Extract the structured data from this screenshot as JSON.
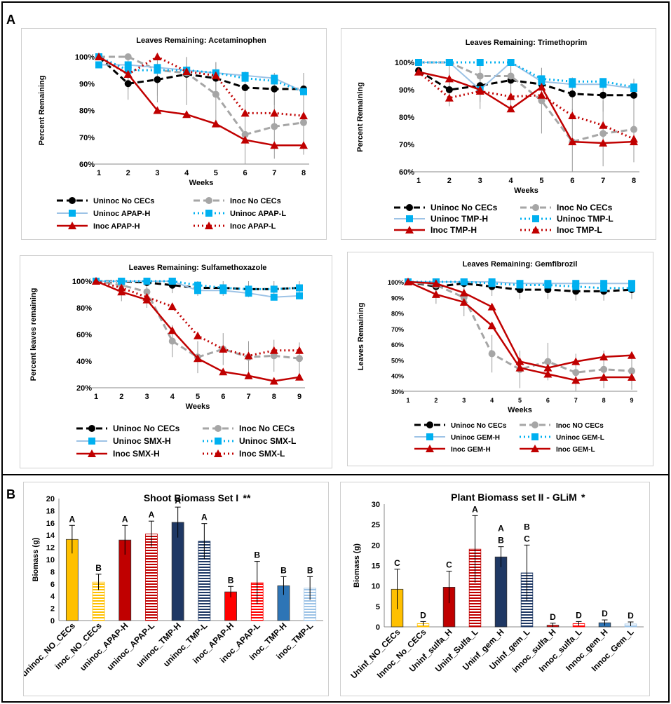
{
  "panels": {
    "a_label": "A",
    "b_label": "B"
  },
  "colors": {
    "black": "#000000",
    "gray": "#a6a6a6",
    "lightblue": "#9dc3e6",
    "blue": "#00b0f0",
    "cyan": "#00b0f0",
    "red": "#c00000",
    "yellow": "#ffc000",
    "darkred": "#c00000",
    "navy": "#1f3864",
    "brightred": "#ff0000",
    "steel": "#2e75b6",
    "sky": "#9dc3e6"
  },
  "chart_data": [
    {
      "type": "line",
      "title": "Leaves Remaining: Acetaminophen",
      "xlabel": "Weeks",
      "ylabel": "Percent Remaining",
      "x": [
        1,
        2,
        3,
        4,
        5,
        6,
        7,
        8
      ],
      "ylim": [
        60,
        100
      ],
      "yticks": [
        "60%",
        "70%",
        "80%",
        "90%",
        "100%"
      ],
      "series": [
        {
          "name": "Uninoc No CECs",
          "values": [
            100,
            90,
            91.5,
            93.5,
            92,
            88.5,
            88,
            88
          ],
          "style": "black"
        },
        {
          "name": "Inoc No CECs",
          "values": [
            100,
            100,
            95,
            94,
            86,
            71,
            74,
            75.5
          ],
          "style": "gray"
        },
        {
          "name": "Uninoc APAP-H",
          "values": [
            97,
            97,
            96,
            95,
            94,
            93,
            92,
            87
          ],
          "style": "lightblue"
        },
        {
          "name": "Uninoc APAP-L",
          "values": [
            100,
            95,
            95,
            95,
            94,
            92,
            91,
            87
          ],
          "style": "cyan"
        },
        {
          "name": "Inoc APAP-H",
          "values": [
            100,
            93.5,
            80,
            78.5,
            75,
            69,
            67,
            67
          ],
          "style": "red"
        },
        {
          "name": "Inoc APAP-L",
          "values": [
            100,
            93.5,
            100,
            94.5,
            93,
            79,
            79,
            78
          ],
          "style": "reddot"
        }
      ]
    },
    {
      "type": "line",
      "title": "Leaves Remaining: Trimethoprim",
      "xlabel": "Weeks",
      "ylabel": "Percent Remaining",
      "x": [
        1,
        2,
        3,
        4,
        5,
        6,
        7,
        8
      ],
      "ylim": [
        60,
        100
      ],
      "yticks": [
        "60%",
        "70%",
        "80%",
        "90%",
        "100%"
      ],
      "series": [
        {
          "name": "Uninoc No CECs",
          "values": [
            97,
            90,
            91.5,
            93.5,
            92,
            88.5,
            88,
            88
          ],
          "style": "black"
        },
        {
          "name": "Inoc No CECs",
          "values": [
            100,
            100,
            95,
            95,
            86,
            71,
            74,
            75.5
          ],
          "style": "gray"
        },
        {
          "name": "Uninoc TMP-H",
          "values": [
            100,
            100,
            90,
            100,
            93,
            92,
            92,
            90.5
          ],
          "style": "lightblue"
        },
        {
          "name": "Uninoc TMP-L",
          "values": [
            100,
            100,
            100,
            100,
            94,
            93,
            93,
            91
          ],
          "style": "cyan"
        },
        {
          "name": "Inoc TMP-H",
          "values": [
            96.5,
            94,
            90,
            83,
            91,
            71,
            70.5,
            71
          ],
          "style": "red"
        },
        {
          "name": "Inoc TMP-L",
          "values": [
            96.5,
            87,
            89.5,
            87.5,
            88,
            80.5,
            77,
            72
          ],
          "style": "reddot"
        }
      ]
    },
    {
      "type": "line",
      "title": "Leaves Remaining: Sulfamethoxazole",
      "xlabel": "Weeks",
      "ylabel": "Percent leaves remaining",
      "x": [
        1,
        2,
        3,
        4,
        5,
        6,
        7,
        8,
        9
      ],
      "ylim": [
        20,
        100
      ],
      "yticks": [
        "20%",
        "40%",
        "60%",
        "80%",
        "100%"
      ],
      "series": [
        {
          "name": "Uninoc No CECs",
          "values": [
            100,
            100,
            99,
            97,
            95,
            95,
            94,
            94,
            95
          ],
          "style": "black"
        },
        {
          "name": "Inoc No CECs",
          "values": [
            100,
            97,
            92,
            55,
            43,
            49,
            43,
            44,
            42
          ],
          "style": "gray"
        },
        {
          "name": "Uninoc SMX-H",
          "values": [
            100,
            100,
            100,
            100,
            93,
            93,
            91,
            88,
            89
          ],
          "style": "lightblue"
        },
        {
          "name": "Uninoc SMX-L",
          "values": [
            100,
            100,
            100,
            100,
            97,
            95,
            94,
            94,
            95
          ],
          "style": "cyan"
        },
        {
          "name": "Inoc SMX-H",
          "values": [
            100,
            92,
            86,
            63,
            42,
            32,
            29,
            25,
            28
          ],
          "style": "red"
        },
        {
          "name": "Inoc SMX-L",
          "values": [
            100,
            95,
            88,
            81,
            59,
            49,
            44,
            48,
            48
          ],
          "style": "reddot"
        }
      ]
    },
    {
      "type": "line",
      "title": "Leaves Remaining: Gemfibrozil",
      "xlabel": "Weeks",
      "ylabel": "Leaves Remaining",
      "x": [
        1,
        2,
        3,
        4,
        5,
        6,
        7,
        8,
        9
      ],
      "ylim": [
        30,
        100
      ],
      "yticks": [
        "30%",
        "40%",
        "50%",
        "60%",
        "70%",
        "80%",
        "90%",
        "100%"
      ],
      "series": [
        {
          "name": "Uninoc  No CECs",
          "values": [
            100,
            97,
            99,
            97,
            95,
            95,
            94,
            94,
            95
          ],
          "style": "black"
        },
        {
          "name": "Inoc NO CECs",
          "values": [
            100,
            98,
            90,
            54,
            44,
            49,
            42,
            44,
            43
          ],
          "style": "gray"
        },
        {
          "name": "Uninoc GEM-H",
          "values": [
            100,
            100,
            100,
            100,
            99,
            99,
            99,
            99,
            99
          ],
          "style": "lightblue"
        },
        {
          "name": "Uninoc GEM-L",
          "values": [
            100,
            100,
            100,
            99,
            98,
            98,
            97,
            96,
            96
          ],
          "style": "cyan"
        },
        {
          "name": "Inoc GEM-H",
          "values": [
            100,
            92,
            87,
            72,
            45,
            41,
            37,
            39,
            39
          ],
          "style": "red"
        },
        {
          "name": "Inoc GEM-L",
          "values": [
            100,
            99,
            93,
            84,
            49,
            45,
            49,
            52,
            53
          ],
          "style": "red"
        }
      ]
    },
    {
      "type": "bar",
      "title": "Shoot Biomass Set I",
      "title_suffix": "**",
      "ylabel": "Biomass (g)",
      "ylim": [
        0,
        20
      ],
      "ytick_step": 2,
      "categories": [
        "uninoc_NO_CECs",
        "inoc_NO_CECs",
        "uninoc_APAP-H",
        "uninoc_APAP-L",
        "uninoc_TMP-H",
        "uninoc_TMP-L",
        "inoc_APAP-H",
        "inoc_APAP-L",
        "inoc_TMP-H",
        "inoc_TMP-L"
      ],
      "values": [
        13.3,
        6.3,
        13.2,
        14.2,
        16.1,
        13.0,
        4.7,
        6.2,
        5.7,
        5.3
      ],
      "errors": [
        2.3,
        1.3,
        2.4,
        2.1,
        2.5,
        2.9,
        0.9,
        3.5,
        1.5,
        1.9
      ],
      "letters": [
        "A",
        "B",
        "A",
        "A",
        "A",
        "A",
        "B",
        "B",
        "B",
        "B"
      ],
      "fills": [
        "yellow",
        "yellow-stripe",
        "darkred",
        "darkred-stripe",
        "navy",
        "navy-stripe",
        "brightred",
        "brightred-stripe",
        "steel",
        "sky-stripe"
      ]
    },
    {
      "type": "bar",
      "title": "Plant Biomass set II - GLiM",
      "title_suffix": "*",
      "ylabel": "Biomass (g)",
      "ylim": [
        0,
        30
      ],
      "ytick_step": 5,
      "categories": [
        "Uninf_NO_CECs",
        "Innoc_No_CECs",
        "Uninf_sulfa_H",
        "Uninf_Sulfa_L",
        "Uninf_gem_H",
        "Uninf_gem_L",
        "innoc_sulfa_H",
        "Innoc_sulfa_L",
        "Innoc_gem_H",
        "Innoc_Gem_L"
      ],
      "values": [
        9.2,
        0.8,
        9.7,
        19.0,
        17.1,
        13.2,
        0.4,
        0.8,
        1.0,
        0.7
      ],
      "errors": [
        4.9,
        0.5,
        3.9,
        8.2,
        2.5,
        6.8,
        0.5,
        0.5,
        0.7,
        0.5
      ],
      "letters": [
        "C",
        "D",
        "C",
        "A",
        "A\nB",
        "B\nC",
        "D",
        "D",
        "D",
        "D"
      ],
      "fills": [
        "yellow",
        "yellow-stripe",
        "darkred",
        "darkred-stripe",
        "navy",
        "navy-stripe",
        "brightred",
        "brightred-stripe",
        "steel",
        "sky-stripe"
      ]
    }
  ]
}
